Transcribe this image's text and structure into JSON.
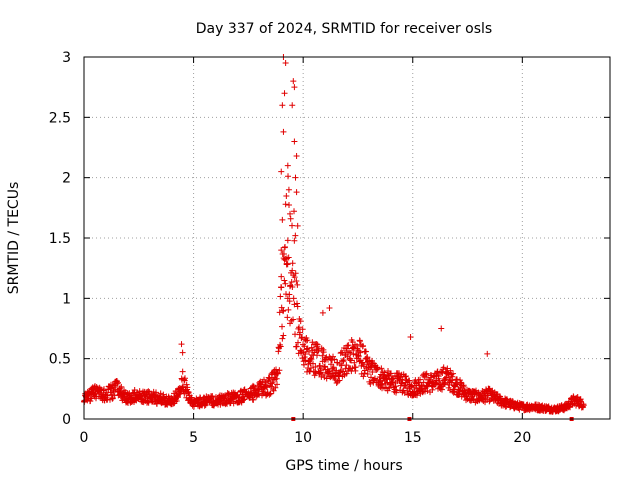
{
  "chart_data": {
    "type": "scatter",
    "title": "Day 337 of 2024, SRMTID for receiver osls",
    "xlabel": "GPS time / hours",
    "ylabel": "SRMTID / TECUs",
    "xlim": [
      0,
      24
    ],
    "ylim": [
      0,
      3
    ],
    "x_ticks": [
      0,
      5,
      10,
      15,
      20
    ],
    "x_tick_labels": [
      "0",
      "5",
      "10",
      "15",
      "20"
    ],
    "y_ticks": [
      0,
      0.5,
      1,
      1.5,
      2,
      2.5,
      3
    ],
    "y_tick_labels": [
      "0",
      "0.5",
      "1",
      "1.5",
      "2",
      "2.5",
      "3"
    ],
    "grid": true,
    "marker": "+",
    "series": [
      {
        "name": "SRMTID osls",
        "color": "#e00000",
        "profile": {
          "x": [
            0.0,
            0.5,
            1.0,
            1.5,
            2.0,
            2.5,
            3.0,
            3.5,
            4.0,
            4.3,
            4.5,
            4.8,
            5.0,
            5.5,
            6.0,
            6.5,
            7.0,
            7.5,
            8.0,
            8.5,
            8.8,
            9.0,
            9.3,
            9.5,
            9.8,
            10.0,
            10.5,
            11.0,
            11.5,
            12.0,
            12.5,
            13.0,
            13.5,
            14.0,
            14.5,
            15.0,
            15.5,
            16.0,
            16.5,
            17.0,
            17.5,
            18.0,
            18.5,
            19.0,
            19.5,
            20.0,
            20.5,
            21.0,
            21.5,
            22.0,
            22.3,
            22.5,
            22.8
          ],
          "y": [
            0.18,
            0.22,
            0.2,
            0.25,
            0.17,
            0.2,
            0.18,
            0.17,
            0.14,
            0.22,
            0.32,
            0.17,
            0.13,
            0.15,
            0.15,
            0.17,
            0.18,
            0.2,
            0.24,
            0.28,
            0.35,
            0.8,
            1.5,
            1.3,
            0.9,
            0.55,
            0.5,
            0.45,
            0.4,
            0.5,
            0.55,
            0.4,
            0.35,
            0.3,
            0.3,
            0.25,
            0.3,
            0.3,
            0.35,
            0.28,
            0.2,
            0.18,
            0.2,
            0.15,
            0.12,
            0.1,
            0.1,
            0.09,
            0.08,
            0.1,
            0.15,
            0.15,
            0.12
          ]
        },
        "peaks": [
          {
            "x": 9.1,
            "y": 3.0
          },
          {
            "x": 9.2,
            "y": 2.95
          },
          {
            "x": 9.15,
            "y": 2.7
          },
          {
            "x": 9.05,
            "y": 2.6
          },
          {
            "x": 9.55,
            "y": 2.8
          },
          {
            "x": 9.6,
            "y": 2.75
          },
          {
            "x": 9.5,
            "y": 2.6
          },
          {
            "x": 9.1,
            "y": 2.38
          },
          {
            "x": 9.6,
            "y": 2.3
          },
          {
            "x": 9.7,
            "y": 2.18
          },
          {
            "x": 9.3,
            "y": 2.1
          },
          {
            "x": 9.0,
            "y": 2.05
          },
          {
            "x": 9.65,
            "y": 2.0
          },
          {
            "x": 9.35,
            "y": 1.9
          },
          {
            "x": 9.7,
            "y": 1.88
          },
          {
            "x": 9.2,
            "y": 1.78
          },
          {
            "x": 9.4,
            "y": 1.7
          },
          {
            "x": 9.05,
            "y": 1.65
          },
          {
            "x": 9.75,
            "y": 1.6
          },
          {
            "x": 9.3,
            "y": 1.48
          },
          {
            "x": 9.0,
            "y": 1.4
          },
          {
            "x": 9.15,
            "y": 1.32
          },
          {
            "x": 9.25,
            "y": 1.28
          },
          {
            "x": 9.5,
            "y": 1.23
          },
          {
            "x": 9.0,
            "y": 1.18
          },
          {
            "x": 9.4,
            "y": 1.1
          },
          {
            "x": 9.3,
            "y": 1.0
          },
          {
            "x": 9.6,
            "y": 0.95
          },
          {
            "x": 9.1,
            "y": 0.9
          },
          {
            "x": 4.45,
            "y": 0.62
          },
          {
            "x": 4.5,
            "y": 0.55
          },
          {
            "x": 18.4,
            "y": 0.54
          },
          {
            "x": 16.3,
            "y": 0.75
          },
          {
            "x": 14.9,
            "y": 0.68
          },
          {
            "x": 10.9,
            "y": 0.88
          },
          {
            "x": 11.2,
            "y": 0.92
          }
        ],
        "point_count": 1500
      }
    ],
    "baseline_marks_x": [
      9.55,
      14.85,
      22.25
    ]
  }
}
